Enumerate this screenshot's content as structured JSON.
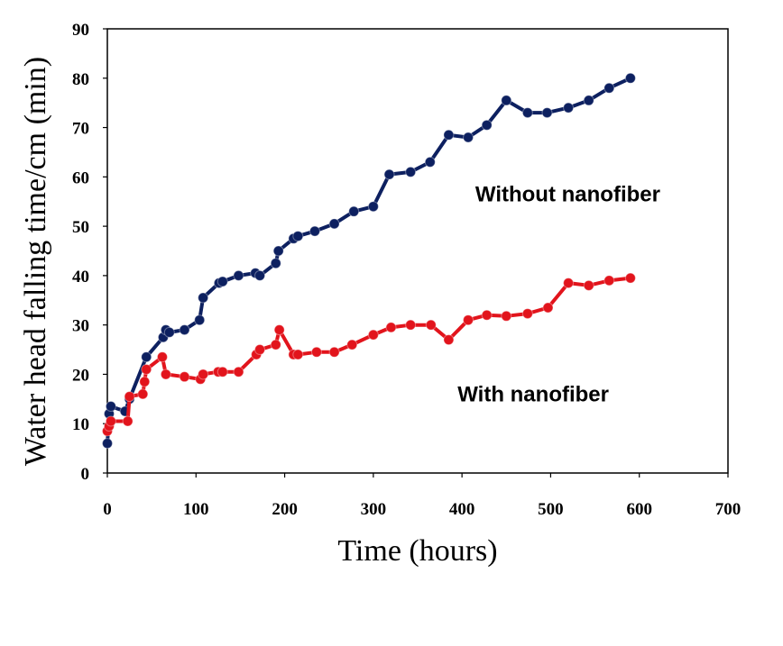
{
  "chart_data": {
    "type": "line",
    "title": "",
    "xlabel": "Time (hours)",
    "ylabel": "Water head falling time/cm (min)",
    "xlim": [
      0,
      700
    ],
    "ylim": [
      0,
      90
    ],
    "xticks": [
      0,
      100,
      200,
      300,
      400,
      500,
      600,
      700
    ],
    "yticks": [
      0,
      10,
      20,
      30,
      40,
      50,
      60,
      70,
      80,
      90
    ],
    "grid": false,
    "legend": "none",
    "series": [
      {
        "name": "Without nanofiber",
        "color": "#0d2060",
        "points": [
          [
            0,
            6
          ],
          [
            2,
            12
          ],
          [
            4,
            13.5
          ],
          [
            20,
            12.5
          ],
          [
            25,
            15
          ],
          [
            44,
            23.5
          ],
          [
            63,
            27.5
          ],
          [
            66,
            29
          ],
          [
            70,
            28.5
          ],
          [
            87,
            29
          ],
          [
            104,
            31
          ],
          [
            108,
            35.5
          ],
          [
            126,
            38.5
          ],
          [
            130,
            38.8
          ],
          [
            148,
            40
          ],
          [
            167,
            40.5
          ],
          [
            172,
            40
          ],
          [
            190,
            42.5
          ],
          [
            193,
            45
          ],
          [
            210,
            47.5
          ],
          [
            215,
            48
          ],
          [
            234,
            49
          ],
          [
            256,
            50.5
          ],
          [
            278,
            53
          ],
          [
            300,
            54
          ],
          [
            318,
            60.5
          ],
          [
            342,
            61
          ],
          [
            364,
            63
          ],
          [
            385,
            68.5
          ],
          [
            407,
            68
          ],
          [
            428,
            70.5
          ],
          [
            450,
            75.5
          ],
          [
            474,
            73
          ],
          [
            496,
            73
          ],
          [
            520,
            74
          ],
          [
            543,
            75.5
          ],
          [
            566,
            78
          ],
          [
            590,
            80
          ]
        ]
      },
      {
        "name": "With nanofiber",
        "color": "#e2141c",
        "points": [
          [
            0,
            8.5
          ],
          [
            2,
            9.5
          ],
          [
            4,
            10.5
          ],
          [
            23,
            10.5
          ],
          [
            25,
            15.5
          ],
          [
            40,
            16
          ],
          [
            42,
            18.5
          ],
          [
            44,
            21
          ],
          [
            62,
            23.5
          ],
          [
            66,
            20
          ],
          [
            87,
            19.5
          ],
          [
            105,
            19
          ],
          [
            108,
            20
          ],
          [
            125,
            20.5
          ],
          [
            130,
            20.5
          ],
          [
            148,
            20.5
          ],
          [
            168,
            24
          ],
          [
            172,
            25
          ],
          [
            190,
            26
          ],
          [
            194,
            29
          ],
          [
            210,
            24
          ],
          [
            215,
            24
          ],
          [
            236,
            24.5
          ],
          [
            256,
            24.5
          ],
          [
            276,
            26
          ],
          [
            300,
            28
          ],
          [
            320,
            29.5
          ],
          [
            342,
            30
          ],
          [
            365,
            30
          ],
          [
            385,
            27
          ],
          [
            407,
            31
          ],
          [
            428,
            32
          ],
          [
            450,
            31.8
          ],
          [
            474,
            32.3
          ],
          [
            497,
            33.5
          ],
          [
            520,
            38.5
          ],
          [
            543,
            38
          ],
          [
            566,
            39
          ],
          [
            590,
            39.5
          ]
        ]
      }
    ],
    "annotations": [
      {
        "text": "Without nanofiber",
        "x": 415,
        "y": 55
      },
      {
        "text": "With nanofiber",
        "x": 395,
        "y": 14.5
      }
    ]
  }
}
